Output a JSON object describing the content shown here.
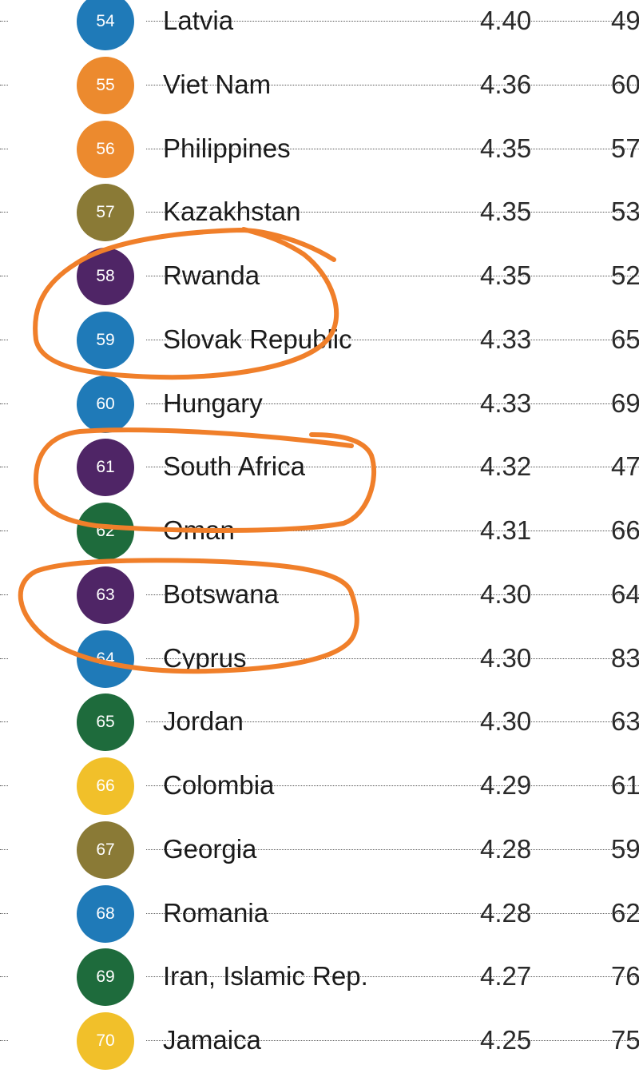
{
  "colors": {
    "blue": "#1f7ab8",
    "orange": "#ec8a2e",
    "olive": "#8a7a36",
    "purple": "#4f2566",
    "green": "#1e6b3c",
    "yellow": "#f1c02a",
    "annotation": "#f07f2a"
  },
  "rows": [
    {
      "rank": "54",
      "country": "Latvia",
      "score": "4.40",
      "extra": "49",
      "color": "blue"
    },
    {
      "rank": "55",
      "country": "Viet Nam",
      "score": "4.36",
      "extra": "60",
      "color": "orange"
    },
    {
      "rank": "56",
      "country": "Philippines",
      "score": "4.35",
      "extra": "57",
      "color": "orange"
    },
    {
      "rank": "57",
      "country": "Kazakhstan",
      "score": "4.35",
      "extra": "53",
      "color": "olive"
    },
    {
      "rank": "58",
      "country": "Rwanda",
      "score": "4.35",
      "extra": "52",
      "color": "purple"
    },
    {
      "rank": "59",
      "country": "Slovak Republic",
      "score": "4.33",
      "extra": "65",
      "color": "blue"
    },
    {
      "rank": "60",
      "country": "Hungary",
      "score": "4.33",
      "extra": "69",
      "color": "blue"
    },
    {
      "rank": "61",
      "country": "South Africa",
      "score": "4.32",
      "extra": "47",
      "color": "purple"
    },
    {
      "rank": "62",
      "country": "Oman",
      "score": "4.31",
      "extra": "66",
      "color": "green"
    },
    {
      "rank": "63",
      "country": "Botswana",
      "score": "4.30",
      "extra": "64",
      "color": "purple"
    },
    {
      "rank": "64",
      "country": "Cyprus",
      "score": "4.30",
      "extra": "83",
      "color": "blue"
    },
    {
      "rank": "65",
      "country": "Jordan",
      "score": "4.30",
      "extra": "63",
      "color": "green"
    },
    {
      "rank": "66",
      "country": "Colombia",
      "score": "4.29",
      "extra": "61",
      "color": "yellow"
    },
    {
      "rank": "67",
      "country": "Georgia",
      "score": "4.28",
      "extra": "59",
      "color": "olive"
    },
    {
      "rank": "68",
      "country": "Romania",
      "score": "4.28",
      "extra": "62",
      "color": "blue"
    },
    {
      "rank": "69",
      "country": "Iran, Islamic Rep.",
      "score": "4.27",
      "extra": "76",
      "color": "green"
    },
    {
      "rank": "70",
      "country": "Jamaica",
      "score": "4.25",
      "extra": "75",
      "color": "yellow"
    }
  ]
}
